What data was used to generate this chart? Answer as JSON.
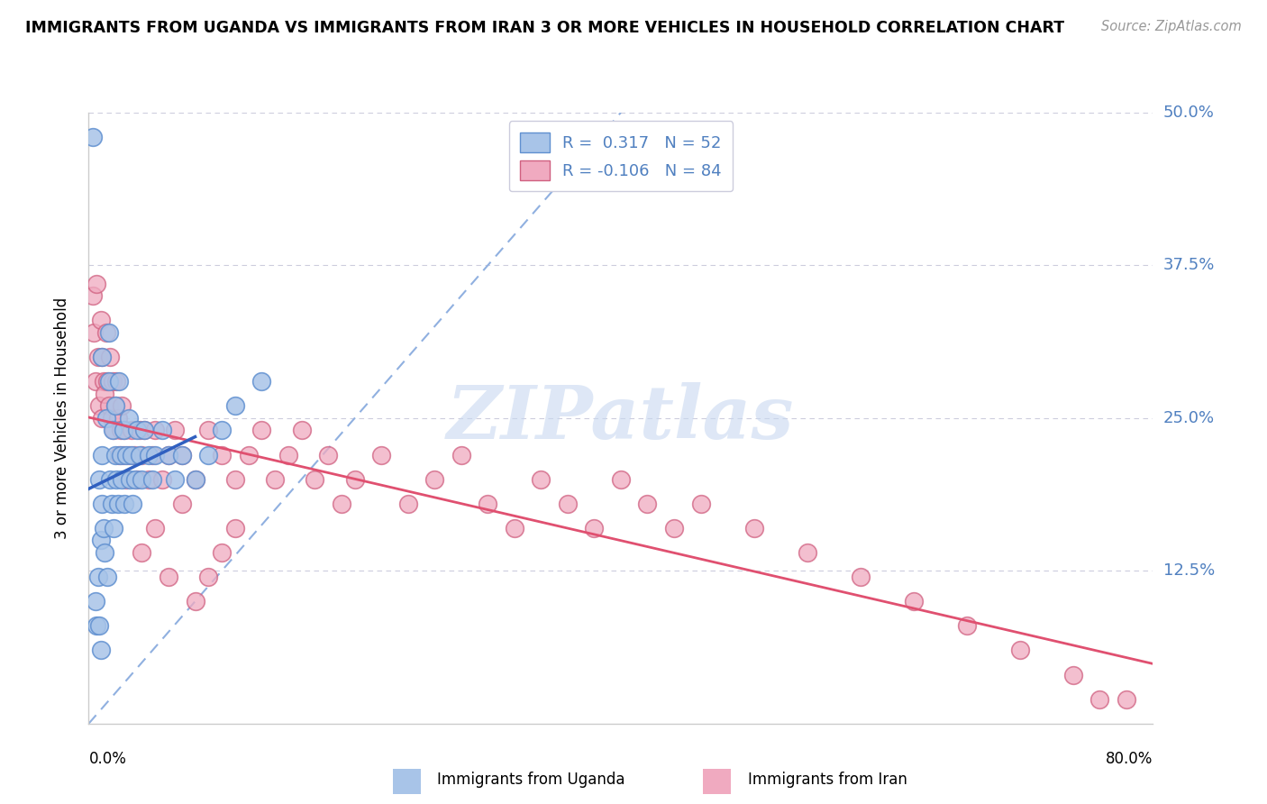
{
  "title": "IMMIGRANTS FROM UGANDA VS IMMIGRANTS FROM IRAN 3 OR MORE VEHICLES IN HOUSEHOLD CORRELATION CHART",
  "source": "Source: ZipAtlas.com",
  "ylabel": "3 or more Vehicles in Household",
  "legend1_R": "0.317",
  "legend1_N": "52",
  "legend2_R": "-0.106",
  "legend2_N": "84",
  "blue_color": "#a8c4e8",
  "blue_edge_color": "#6090d0",
  "pink_color": "#f0aac0",
  "pink_edge_color": "#d06080",
  "blue_line_color": "#3060c0",
  "pink_line_color": "#e05070",
  "dash_color": "#90b0e0",
  "watermark_color": "#c8d8f0",
  "right_label_color": "#5080c0",
  "xlim": [
    0.0,
    0.8
  ],
  "ylim": [
    0.0,
    0.5
  ],
  "ytick_vals": [
    0.0,
    0.125,
    0.25,
    0.375,
    0.5
  ],
  "ytick_labels": [
    "",
    "12.5%",
    "25.0%",
    "37.5%",
    "50.0%"
  ],
  "uganda_x": [
    0.003,
    0.005,
    0.006,
    0.007,
    0.008,
    0.009,
    0.01,
    0.01,
    0.01,
    0.011,
    0.012,
    0.013,
    0.014,
    0.015,
    0.015,
    0.016,
    0.017,
    0.018,
    0.019,
    0.02,
    0.02,
    0.021,
    0.022,
    0.023,
    0.024,
    0.025,
    0.026,
    0.027,
    0.028,
    0.03,
    0.031,
    0.032,
    0.033,
    0.035,
    0.036,
    0.038,
    0.04,
    0.042,
    0.045,
    0.048,
    0.05,
    0.055,
    0.06,
    0.065,
    0.07,
    0.08,
    0.09,
    0.1,
    0.11,
    0.13,
    0.008,
    0.009
  ],
  "uganda_y": [
    0.48,
    0.1,
    0.08,
    0.12,
    0.2,
    0.15,
    0.18,
    0.22,
    0.3,
    0.16,
    0.14,
    0.25,
    0.12,
    0.32,
    0.28,
    0.2,
    0.18,
    0.24,
    0.16,
    0.22,
    0.26,
    0.2,
    0.18,
    0.28,
    0.22,
    0.2,
    0.24,
    0.18,
    0.22,
    0.25,
    0.2,
    0.22,
    0.18,
    0.2,
    0.24,
    0.22,
    0.2,
    0.24,
    0.22,
    0.2,
    0.22,
    0.24,
    0.22,
    0.2,
    0.22,
    0.2,
    0.22,
    0.24,
    0.26,
    0.28,
    0.08,
    0.06
  ],
  "iran_x": [
    0.003,
    0.004,
    0.005,
    0.006,
    0.007,
    0.008,
    0.009,
    0.01,
    0.01,
    0.011,
    0.012,
    0.013,
    0.014,
    0.015,
    0.016,
    0.017,
    0.018,
    0.019,
    0.02,
    0.021,
    0.022,
    0.023,
    0.024,
    0.025,
    0.026,
    0.027,
    0.028,
    0.03,
    0.032,
    0.034,
    0.036,
    0.038,
    0.04,
    0.042,
    0.045,
    0.048,
    0.05,
    0.055,
    0.06,
    0.065,
    0.07,
    0.08,
    0.09,
    0.1,
    0.11,
    0.12,
    0.13,
    0.14,
    0.15,
    0.16,
    0.17,
    0.18,
    0.19,
    0.2,
    0.22,
    0.24,
    0.26,
    0.28,
    0.3,
    0.32,
    0.34,
    0.36,
    0.38,
    0.4,
    0.42,
    0.44,
    0.46,
    0.5,
    0.54,
    0.58,
    0.62,
    0.66,
    0.7,
    0.74,
    0.76,
    0.78,
    0.04,
    0.05,
    0.06,
    0.07,
    0.08,
    0.09,
    0.1,
    0.11
  ],
  "iran_y": [
    0.35,
    0.32,
    0.28,
    0.36,
    0.3,
    0.26,
    0.33,
    0.25,
    0.3,
    0.28,
    0.27,
    0.32,
    0.28,
    0.26,
    0.3,
    0.25,
    0.28,
    0.24,
    0.26,
    0.28,
    0.25,
    0.22,
    0.24,
    0.26,
    0.22,
    0.24,
    0.2,
    0.22,
    0.24,
    0.22,
    0.2,
    0.24,
    0.22,
    0.24,
    0.2,
    0.22,
    0.24,
    0.2,
    0.22,
    0.24,
    0.22,
    0.2,
    0.24,
    0.22,
    0.2,
    0.22,
    0.24,
    0.2,
    0.22,
    0.24,
    0.2,
    0.22,
    0.18,
    0.2,
    0.22,
    0.18,
    0.2,
    0.22,
    0.18,
    0.16,
    0.2,
    0.18,
    0.16,
    0.2,
    0.18,
    0.16,
    0.18,
    0.16,
    0.14,
    0.12,
    0.1,
    0.08,
    0.06,
    0.04,
    0.02,
    0.02,
    0.14,
    0.16,
    0.12,
    0.18,
    0.1,
    0.12,
    0.14,
    0.16
  ]
}
